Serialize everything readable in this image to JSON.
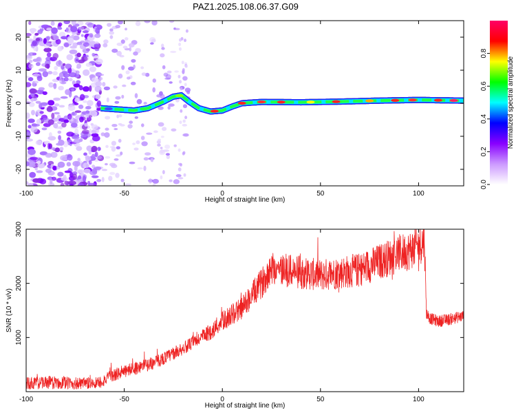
{
  "title": "PAZ1.2025.108.06.37.G09",
  "chart_data": [
    {
      "type": "heatmap",
      "xlabel": "Height of straight line (km)",
      "ylabel": "Frequency (Hz)",
      "xlim": [
        -100,
        123
      ],
      "ylim": [
        -25,
        25
      ],
      "xticks": [
        -100,
        -50,
        0,
        50,
        100
      ],
      "yticks": [
        20,
        10,
        0,
        -10,
        -20
      ],
      "colorbar": {
        "label": "Normalized spectral amplitude",
        "range": [
          0,
          1
        ],
        "ticks": [
          "0.0",
          "0.2",
          "0.4",
          "0.6",
          "0.8"
        ],
        "colors": [
          "#ffffff",
          "#cc99ff",
          "#8800ff",
          "#0000ff",
          "#00ffff",
          "#00ff00",
          "#ffff00",
          "#ff0000",
          "#ff0066"
        ]
      },
      "ridge": {
        "x": [
          -62,
          -55,
          -45,
          -38,
          -30,
          -25,
          -21,
          -17,
          -12,
          -6,
          0,
          5,
          10,
          20,
          40,
          60,
          80,
          100,
          123
        ],
        "frequency": [
          -1.5,
          -1.8,
          -2.2,
          -1.5,
          0.5,
          2.0,
          2.4,
          0.5,
          -1.5,
          -2.5,
          -2.2,
          -1.0,
          0.0,
          0.4,
          0.3,
          0.5,
          0.8,
          1.0,
          0.8
        ]
      }
    },
    {
      "type": "line",
      "xlabel": "Height of straight line (km)",
      "ylabel": "SNR (10 * v/v)",
      "xlim": [
        -100,
        123
      ],
      "ylim": [
        0,
        3000
      ],
      "xticks": [
        -100,
        -50,
        0,
        50,
        100
      ],
      "yticks": [
        1000,
        2000,
        3000
      ],
      "color": "#ee2222",
      "series": [
        {
          "x": [
            -100,
            -90,
            -80,
            -70,
            -62,
            -55,
            -45,
            -35,
            -25,
            -15,
            -5,
            0,
            10,
            20,
            25,
            30,
            40,
            50,
            60,
            70,
            80,
            90,
            95,
            100,
            103,
            104,
            106,
            110,
            115,
            123
          ],
          "y": [
            150,
            170,
            160,
            140,
            180,
            310,
            430,
            530,
            700,
            900,
            1130,
            1300,
            1550,
            2000,
            2300,
            2250,
            2200,
            2150,
            2200,
            2250,
            2400,
            2550,
            2600,
            2700,
            2800,
            1450,
            1350,
            1300,
            1330,
            1400
          ]
        }
      ]
    }
  ]
}
